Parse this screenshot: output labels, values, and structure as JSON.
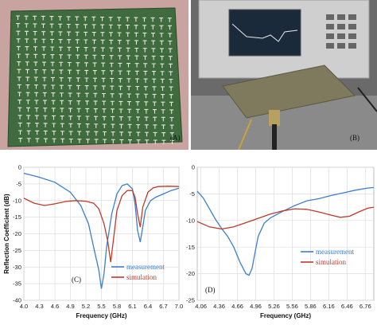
{
  "panels": {
    "a_label": "(A)",
    "b_label": "(B)"
  },
  "colors": {
    "measurement": "#3a7fd0",
    "simulation": "#c0392b",
    "board": "#3f6b3e",
    "analyzer": "#cfcfcf"
  },
  "chart_data": [
    {
      "type": "line",
      "panel": "(C)",
      "xlabel": "Frequency (GHz)",
      "ylabel": "Reflection Coefficient (dB)",
      "x_ticks": [
        "4.0",
        "4.3",
        "4.6",
        "4.9",
        "5.2",
        "5.5",
        "5.8",
        "6.1",
        "6.4",
        "6.7",
        "7.0"
      ],
      "xlim": [
        4.0,
        7.0
      ],
      "y_ticks": [
        0,
        -5,
        -10,
        -15,
        -20,
        -25,
        -30,
        -35,
        -40
      ],
      "ylim": [
        -40,
        0
      ],
      "grid": true,
      "legend": "lower-right",
      "series": [
        {
          "name": "measurement",
          "color": "#3a7fd0",
          "points": [
            [
              4.0,
              -1.8
            ],
            [
              4.3,
              -3.0
            ],
            [
              4.6,
              -4.5
            ],
            [
              4.9,
              -7.5
            ],
            [
              5.1,
              -11.5
            ],
            [
              5.25,
              -17.0
            ],
            [
              5.35,
              -24.0
            ],
            [
              5.45,
              -31.0
            ],
            [
              5.5,
              -36.5
            ],
            [
              5.55,
              -32.0
            ],
            [
              5.6,
              -24.0
            ],
            [
              5.7,
              -14.0
            ],
            [
              5.8,
              -8.0
            ],
            [
              5.9,
              -5.5
            ],
            [
              6.0,
              -5.0
            ],
            [
              6.1,
              -6.5
            ],
            [
              6.15,
              -11.0
            ],
            [
              6.2,
              -19.0
            ],
            [
              6.25,
              -22.5
            ],
            [
              6.3,
              -18.0
            ],
            [
              6.35,
              -13.0
            ],
            [
              6.45,
              -10.0
            ],
            [
              6.55,
              -9.0
            ],
            [
              6.7,
              -8.0
            ],
            [
              6.85,
              -7.0
            ],
            [
              7.0,
              -6.3
            ]
          ]
        },
        {
          "name": "simulation",
          "color": "#c0392b",
          "points": [
            [
              4.0,
              -9.3
            ],
            [
              4.2,
              -10.8
            ],
            [
              4.4,
              -11.5
            ],
            [
              4.6,
              -11.0
            ],
            [
              4.8,
              -10.3
            ],
            [
              5.0,
              -10.0
            ],
            [
              5.2,
              -10.2
            ],
            [
              5.35,
              -10.8
            ],
            [
              5.45,
              -12.5
            ],
            [
              5.55,
              -17.0
            ],
            [
              5.62,
              -22.0
            ],
            [
              5.68,
              -28.5
            ],
            [
              5.73,
              -22.0
            ],
            [
              5.8,
              -13.0
            ],
            [
              5.9,
              -8.5
            ],
            [
              6.0,
              -7.0
            ],
            [
              6.1,
              -7.0
            ],
            [
              6.15,
              -9.0
            ],
            [
              6.2,
              -14.0
            ],
            [
              6.25,
              -18.0
            ],
            [
              6.3,
              -12.0
            ],
            [
              6.4,
              -7.5
            ],
            [
              6.5,
              -6.2
            ],
            [
              6.6,
              -5.8
            ],
            [
              6.8,
              -5.7
            ],
            [
              7.0,
              -5.8
            ]
          ]
        }
      ]
    },
    {
      "type": "line",
      "panel": "(D)",
      "xlabel": "Frequency (GHz)",
      "ylabel": "",
      "x_ticks": [
        "4.06",
        "4.36",
        "4.66",
        "4.96",
        "5.26",
        "5.56",
        "5.86",
        "6.16",
        "6.46",
        "6.76"
      ],
      "xlim": [
        4.0,
        6.9
      ],
      "y_ticks": [
        0,
        -5,
        -10,
        -15,
        -20,
        -25
      ],
      "ylim": [
        -25,
        0
      ],
      "grid": true,
      "legend": "lower-right",
      "series": [
        {
          "name": "measurement",
          "color": "#3a7fd0",
          "points": [
            [
              4.0,
              -4.5
            ],
            [
              4.1,
              -5.8
            ],
            [
              4.2,
              -7.8
            ],
            [
              4.3,
              -9.8
            ],
            [
              4.4,
              -11.5
            ],
            [
              4.5,
              -13.0
            ],
            [
              4.6,
              -15.0
            ],
            [
              4.7,
              -17.8
            ],
            [
              4.8,
              -20.0
            ],
            [
              4.85,
              -20.3
            ],
            [
              4.9,
              -19.0
            ],
            [
              4.95,
              -16.0
            ],
            [
              5.0,
              -13.0
            ],
            [
              5.1,
              -10.5
            ],
            [
              5.2,
              -9.5
            ],
            [
              5.4,
              -8.3
            ],
            [
              5.6,
              -7.2
            ],
            [
              5.8,
              -6.3
            ],
            [
              6.0,
              -5.9
            ],
            [
              6.2,
              -5.3
            ],
            [
              6.4,
              -4.8
            ],
            [
              6.6,
              -4.3
            ],
            [
              6.8,
              -3.9
            ],
            [
              6.9,
              -3.8
            ]
          ]
        },
        {
          "name": "simulation",
          "color": "#c0392b",
          "points": [
            [
              4.0,
              -10.2
            ],
            [
              4.2,
              -11.2
            ],
            [
              4.4,
              -11.6
            ],
            [
              4.6,
              -11.2
            ],
            [
              4.8,
              -10.4
            ],
            [
              5.0,
              -9.6
            ],
            [
              5.2,
              -8.8
            ],
            [
              5.4,
              -8.2
            ],
            [
              5.6,
              -7.8
            ],
            [
              5.8,
              -7.9
            ],
            [
              6.0,
              -8.4
            ],
            [
              6.2,
              -9.0
            ],
            [
              6.35,
              -9.4
            ],
            [
              6.5,
              -9.2
            ],
            [
              6.65,
              -8.4
            ],
            [
              6.8,
              -7.7
            ],
            [
              6.9,
              -7.5
            ]
          ]
        }
      ]
    }
  ]
}
